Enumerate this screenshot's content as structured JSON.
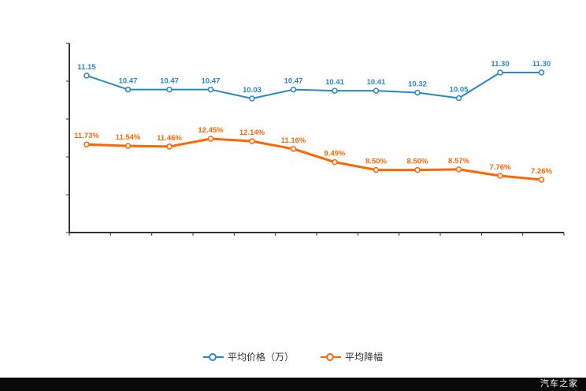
{
  "watermark": "汽车之家",
  "legend": {
    "items": [
      {
        "label": "平均价格（万）",
        "color": "#2787c9"
      },
      {
        "label": "平均降幅",
        "color": "#ff6600"
      }
    ]
  },
  "chart_data": {
    "type": "line",
    "title": "",
    "xlabel": "",
    "ylabel": "",
    "grid": false,
    "legend_position": "bottom",
    "x_tick_labels_visible": false,
    "y_tick_labels_visible": false,
    "num_points": 12,
    "series": [
      {
        "name": "平均价格（万）",
        "color": "#2787c9",
        "values": [
          11.15,
          10.47,
          10.47,
          10.47,
          10.03,
          10.47,
          10.41,
          10.41,
          10.32,
          10.05,
          11.3,
          11.3
        ],
        "labels": [
          "11.15",
          "10.47",
          "10.47",
          "10.47",
          "10.03",
          "10.47",
          "10.41",
          "10.41",
          "10.32",
          "10.05",
          "11.30",
          "11.30"
        ]
      },
      {
        "name": "平均降幅",
        "color": "#ff6600",
        "values": [
          11.73,
          11.54,
          11.46,
          12.45,
          12.14,
          11.16,
          9.49,
          8.5,
          8.5,
          8.57,
          7.76,
          7.26
        ],
        "labels": [
          "11.73%",
          "11.54%",
          "11.46%",
          "12.45%",
          "12.14%",
          "11.16%",
          "9.49%",
          "8.50%",
          "8.50%",
          "8.57%",
          "7.76%",
          "7.26%"
        ]
      }
    ]
  }
}
